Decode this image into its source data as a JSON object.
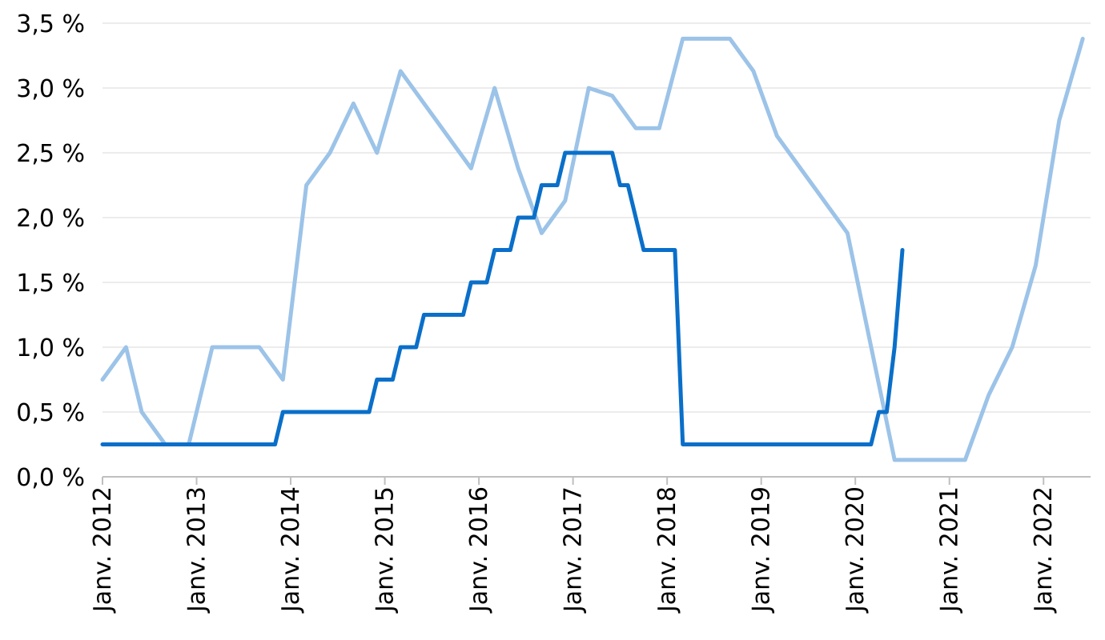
{
  "chart_data": {
    "type": "line",
    "title": "",
    "xlabel": "",
    "ylabel": "",
    "ylim": [
      0,
      3.5
    ],
    "xlim": [
      "2012-01",
      "2022-07"
    ],
    "grid": true,
    "legend": "none",
    "yticks": [
      {
        "value": 0.0,
        "label": "0,0 %"
      },
      {
        "value": 0.5,
        "label": "0,5 %"
      },
      {
        "value": 1.0,
        "label": "1,0 %"
      },
      {
        "value": 1.5,
        "label": "1,5 %"
      },
      {
        "value": 2.0,
        "label": "2,0 %"
      },
      {
        "value": 2.5,
        "label": "2,5 %"
      },
      {
        "value": 3.0,
        "label": "3,0 %"
      },
      {
        "value": 3.5,
        "label": "3,5 %"
      }
    ],
    "xticks": [
      {
        "value": "2012-01",
        "label": "Janv. 2012"
      },
      {
        "value": "2013-01",
        "label": "Janv. 2013"
      },
      {
        "value": "2014-01",
        "label": "Janv. 2014"
      },
      {
        "value": "2015-01",
        "label": "Janv. 2015"
      },
      {
        "value": "2016-01",
        "label": "Janv. 2016"
      },
      {
        "value": "2017-01",
        "label": "Janv. 2017"
      },
      {
        "value": "2018-01",
        "label": "Janv. 2018"
      },
      {
        "value": "2019-01",
        "label": "Janv. 2019"
      },
      {
        "value": "2020-01",
        "label": "Janv. 2020"
      },
      {
        "value": "2021-01",
        "label": "Janv. 2021"
      },
      {
        "value": "2022-01",
        "label": "Janv. 2022"
      }
    ],
    "series": [
      {
        "color": "#9CC3E8",
        "points": [
          [
            "2012-01",
            0.75
          ],
          [
            "2012-04",
            1.0
          ],
          [
            "2012-06",
            0.5
          ],
          [
            "2012-09",
            0.25
          ],
          [
            "2012-12",
            0.25
          ],
          [
            "2013-03",
            1.0
          ],
          [
            "2013-09",
            1.0
          ],
          [
            "2013-12",
            0.75
          ],
          [
            "2014-03",
            2.25
          ],
          [
            "2014-06",
            2.5
          ],
          [
            "2014-09",
            2.88
          ],
          [
            "2014-12",
            2.5
          ],
          [
            "2015-03",
            3.13
          ],
          [
            "2015-12",
            2.38
          ],
          [
            "2016-03",
            3.0
          ],
          [
            "2016-06",
            2.38
          ],
          [
            "2016-09",
            1.88
          ],
          [
            "2016-12",
            2.13
          ],
          [
            "2017-03",
            3.0
          ],
          [
            "2017-06",
            2.94
          ],
          [
            "2017-09",
            2.69
          ],
          [
            "2017-12",
            2.69
          ],
          [
            "2018-03",
            3.38
          ],
          [
            "2018-09",
            3.38
          ],
          [
            "2018-12",
            3.13
          ],
          [
            "2019-03",
            2.63
          ],
          [
            "2019-12",
            1.88
          ],
          [
            "2020-06",
            0.13
          ],
          [
            "2021-03",
            0.13
          ],
          [
            "2021-06",
            0.63
          ],
          [
            "2021-09",
            1.0
          ],
          [
            "2021-12",
            1.63
          ],
          [
            "2022-03",
            2.75
          ],
          [
            "2022-06",
            3.38
          ]
        ]
      },
      {
        "color": "#0A6FC9",
        "points": [
          [
            "2012-01",
            0.25
          ],
          [
            "2013-11",
            0.25
          ],
          [
            "2013-12",
            0.5
          ],
          [
            "2014-11",
            0.5
          ],
          [
            "2014-12",
            0.75
          ],
          [
            "2015-02",
            0.75
          ],
          [
            "2015-03",
            1.0
          ],
          [
            "2015-05",
            1.0
          ],
          [
            "2015-06",
            1.25
          ],
          [
            "2015-11",
            1.25
          ],
          [
            "2015-12",
            1.5
          ],
          [
            "2016-02",
            1.5
          ],
          [
            "2016-03",
            1.75
          ],
          [
            "2016-05",
            1.75
          ],
          [
            "2016-06",
            2.0
          ],
          [
            "2016-08",
            2.0
          ],
          [
            "2016-09",
            2.25
          ],
          [
            "2016-11",
            2.25
          ],
          [
            "2016-12",
            2.5
          ],
          [
            "2017-06",
            2.5
          ],
          [
            "2017-07",
            2.25
          ],
          [
            "2017-08",
            2.25
          ],
          [
            "2017-10",
            1.75
          ],
          [
            "2018-02",
            1.75
          ],
          [
            "2018-03",
            0.25
          ],
          [
            "2020-03",
            0.25
          ],
          [
            "2020-04",
            0.5
          ],
          [
            "2020-05",
            0.5
          ],
          [
            "2020-06",
            1.0
          ],
          [
            "2020-07",
            1.75
          ]
        ]
      }
    ]
  }
}
